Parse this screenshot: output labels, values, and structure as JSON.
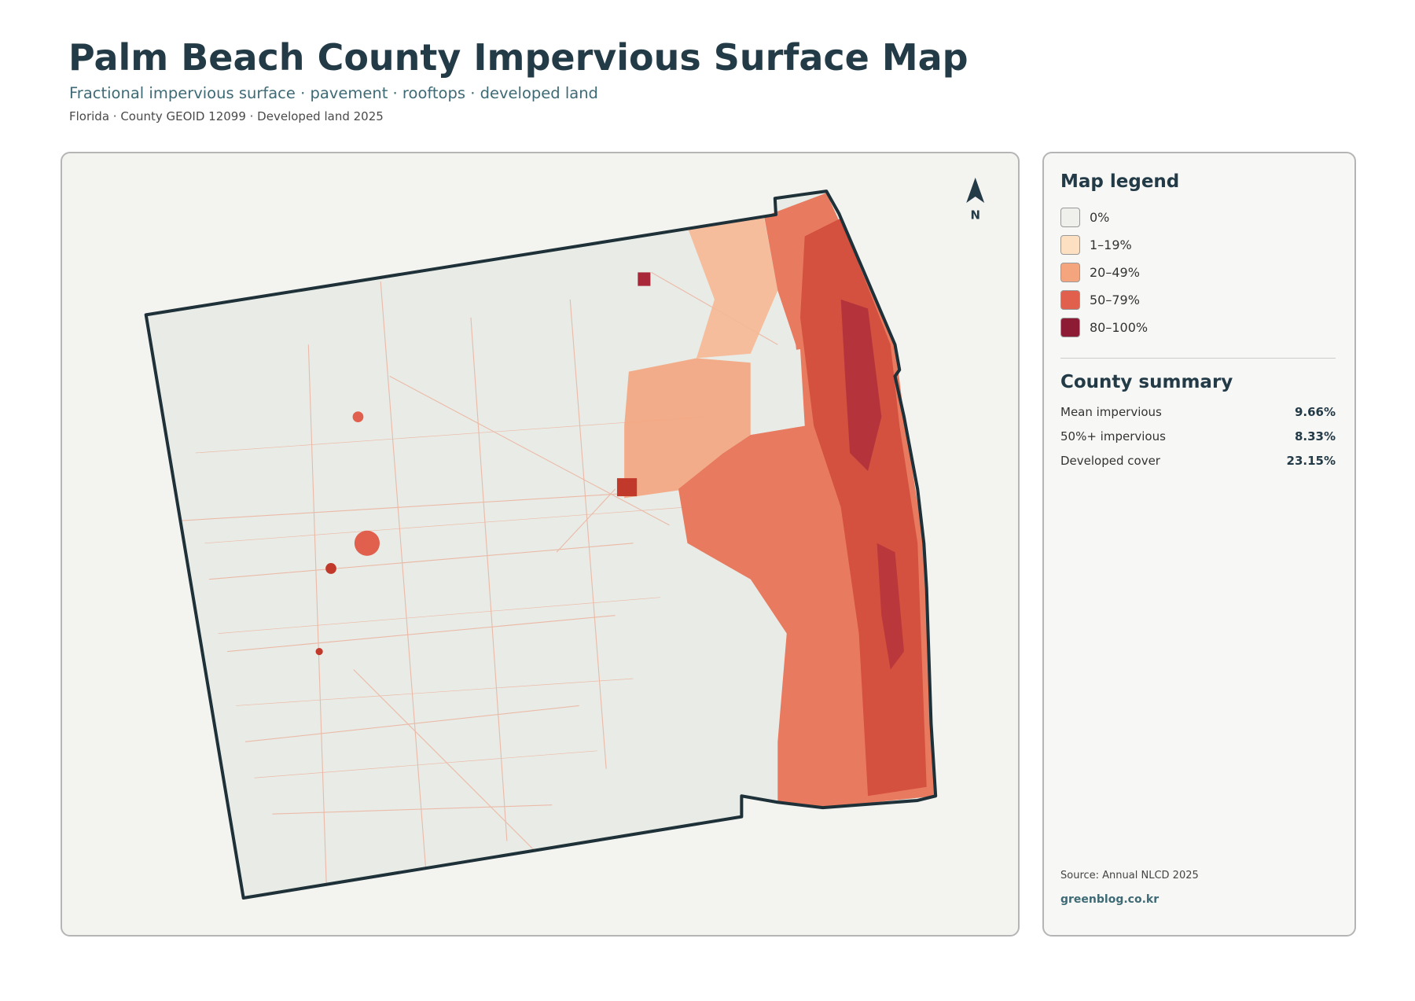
{
  "header": {
    "title": "Palm Beach County Impervious Surface Map",
    "subtitle": "Fractional impervious surface · pavement · rooftops · developed land",
    "meta": "Florida · County GEOID 12099 · Developed land 2025"
  },
  "map": {
    "north": "N"
  },
  "legend": {
    "title": "Map legend",
    "items": [
      {
        "label": "0%",
        "color": "#efefec"
      },
      {
        "label": "1–19%",
        "color": "#fde0c2"
      },
      {
        "label": "20–49%",
        "color": "#f4a57e"
      },
      {
        "label": "50–79%",
        "color": "#e0604d"
      },
      {
        "label": "80–100%",
        "color": "#8c1b33"
      }
    ]
  },
  "summary": {
    "title": "County summary",
    "rows": [
      {
        "label": "Mean impervious",
        "value": "9.66%"
      },
      {
        "label": "50%+ impervious",
        "value": "8.33%"
      },
      {
        "label": "Developed cover",
        "value": "23.15%"
      }
    ]
  },
  "footer": {
    "source": "Source: Annual NLCD 2025",
    "credit": "greenblog.co.kr"
  }
}
